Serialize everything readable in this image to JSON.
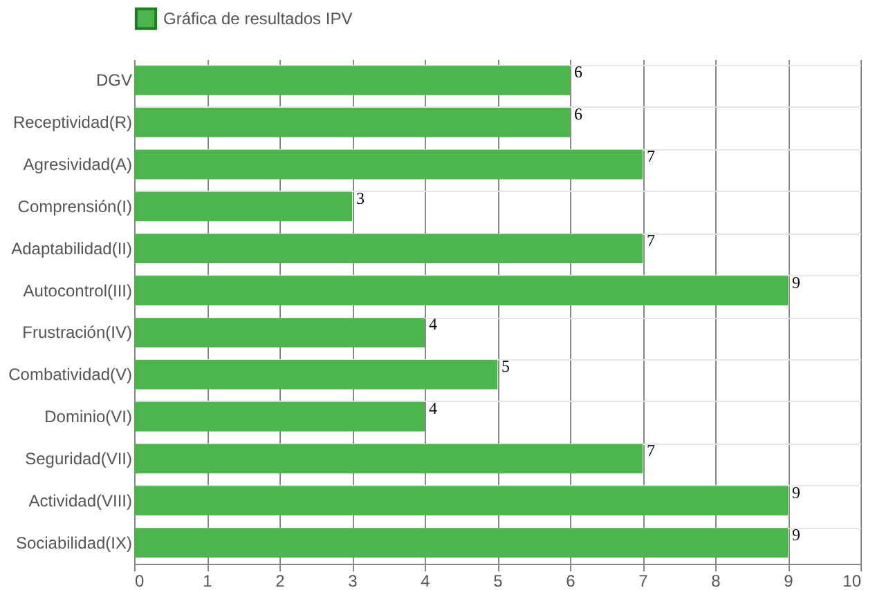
{
  "chart_data": {
    "type": "bar",
    "orientation": "horizontal",
    "categories": [
      "DGV",
      "Receptividad(R)",
      "Agresividad(A)",
      "Comprensión(I)",
      "Adaptabilidad(II)",
      "Autocontrol(III)",
      "Frustración(IV)",
      "Combatividad(V)",
      "Dominio(VI)",
      "Seguridad(VII)",
      "Actividad(VIII)",
      "Sociabilidad(IX)"
    ],
    "series": [
      {
        "name": "Gráfica de resultados IPV",
        "color": "#4db54d",
        "values": [
          6,
          6,
          7,
          3,
          7,
          9,
          4,
          5,
          4,
          7,
          9,
          9
        ]
      }
    ],
    "xlim": [
      0,
      10
    ],
    "xticks": [
      0,
      1,
      2,
      3,
      4,
      5,
      6,
      7,
      8,
      9,
      10
    ],
    "grid": true,
    "legend": "top",
    "data_labels": true
  }
}
